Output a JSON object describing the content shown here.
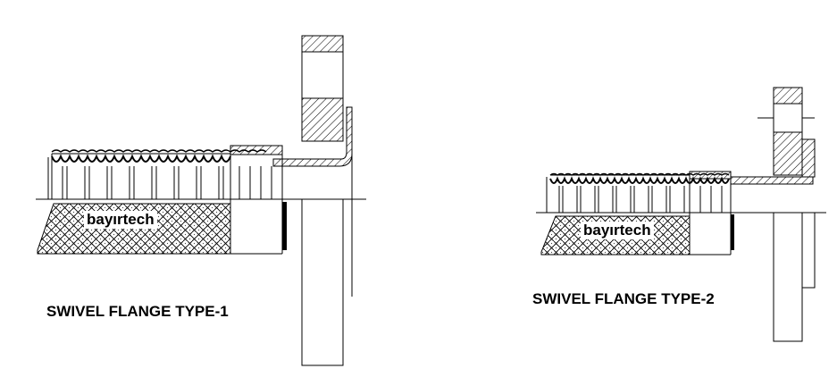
{
  "diagram_1": {
    "caption": "SWIVEL FLANGE TYPE-1",
    "brand": "bayırtech"
  },
  "diagram_2": {
    "caption": "SWIVEL FLANGE TYPE-2",
    "brand": "bayırtech"
  }
}
